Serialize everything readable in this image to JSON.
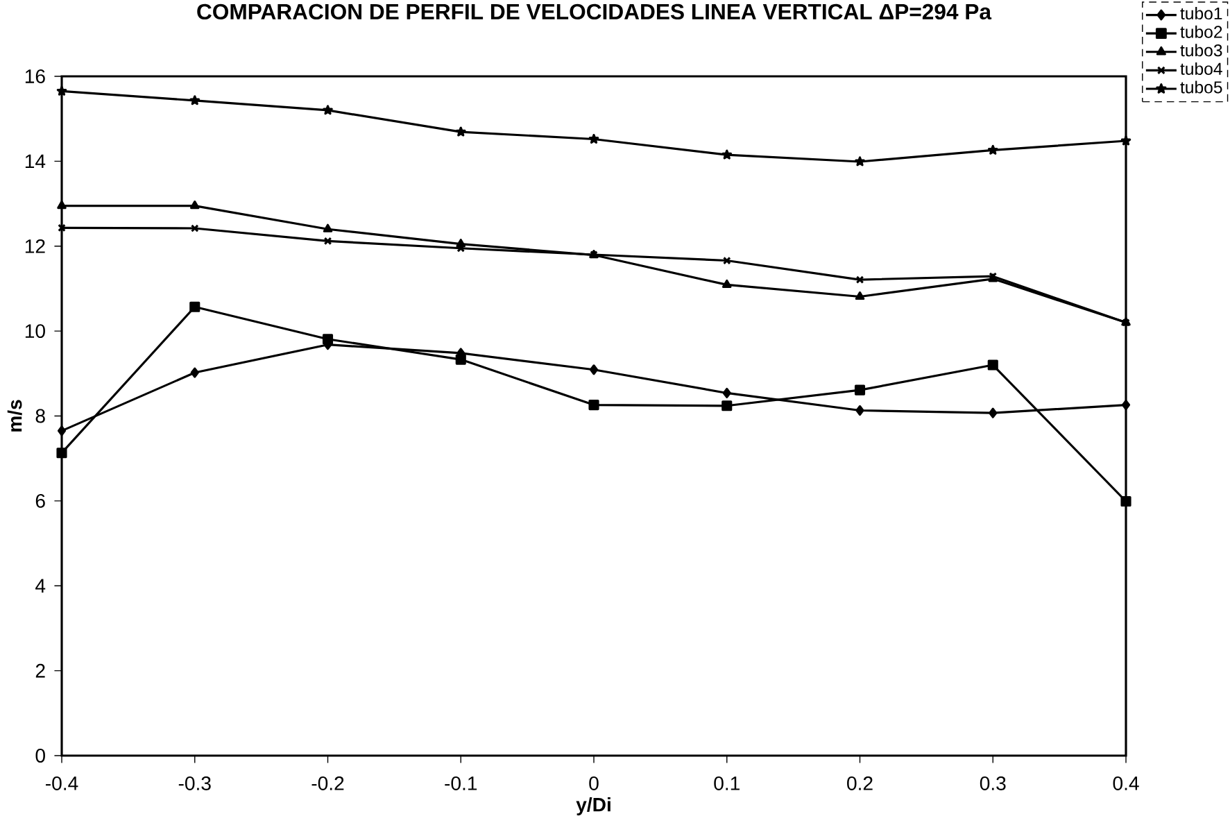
{
  "chart_data": {
    "type": "line",
    "title": "COMPARACION DE PERFIL DE VELOCIDADES LINEA VERTICAL ΔP=294 Pa",
    "xlabel": "y/Di",
    "ylabel": "m/s",
    "categories": [
      "-0.4",
      "-0.3",
      "-0.2",
      "-0.1",
      "0",
      "0.1",
      "0.2",
      "0.3",
      "0.4"
    ],
    "ylim": [
      0,
      16
    ],
    "yticks": [
      0,
      2,
      4,
      6,
      8,
      10,
      12,
      14,
      16
    ],
    "grid": false,
    "legend": "top right",
    "line_style": "solid",
    "series": [
      {
        "name": "tubo1",
        "color": "#000000",
        "marker": "diamond",
        "values": [
          7.65,
          9.02,
          9.68,
          9.48,
          9.09,
          8.54,
          8.13,
          8.07,
          8.26
        ]
      },
      {
        "name": "tubo2",
        "color": "#000000",
        "marker": "square",
        "values": [
          7.13,
          10.57,
          9.81,
          9.33,
          8.26,
          8.24,
          8.61,
          9.2,
          5.99
        ]
      },
      {
        "name": "tubo3",
        "color": "#000000",
        "marker": "triangle",
        "values": [
          12.95,
          12.95,
          12.4,
          12.05,
          11.79,
          11.09,
          10.81,
          11.23,
          10.2
        ]
      },
      {
        "name": "tubo4",
        "color": "#000000",
        "marker": "cross",
        "values": [
          12.43,
          12.42,
          12.12,
          11.95,
          11.8,
          11.66,
          11.21,
          11.29,
          10.2
        ]
      },
      {
        "name": "tubo5",
        "color": "#000000",
        "marker": "star",
        "values": [
          15.65,
          15.43,
          15.2,
          14.69,
          14.52,
          14.15,
          13.99,
          14.26,
          14.48
        ]
      }
    ]
  }
}
